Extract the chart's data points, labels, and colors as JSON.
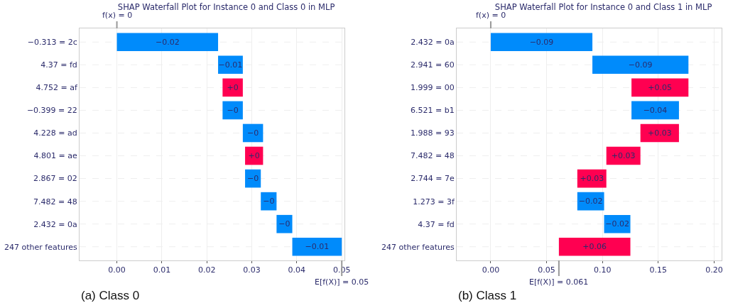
{
  "chart_data": [
    {
      "type": "bar",
      "orientation": "horizontal",
      "title": "SHAP Waterfall Plot for Instance 0 and Class 0 in MLP",
      "categories": [
        "−0.313 = 2c",
        "4.37 = fd",
        "4.752 = af",
        "−0.399 = 22",
        "4.228 = ad",
        "4.801 = ae",
        "2.867 = 02",
        "7.482 = 48",
        "2.432 = 0a",
        "247 other features"
      ],
      "base": [
        0.0225,
        0.028,
        0.0235,
        0.028,
        0.0325,
        0.0285,
        0.032,
        0.0355,
        0.039,
        0.05
      ],
      "values": [
        -0.0225,
        -0.0055,
        0.0045,
        -0.0045,
        -0.0045,
        0.004,
        -0.0035,
        -0.0035,
        -0.0035,
        -0.011
      ],
      "colors": [
        "#008bfb",
        "#008bfb",
        "#ff0051",
        "#008bfb",
        "#008bfb",
        "#ff0051",
        "#008bfb",
        "#008bfb",
        "#008bfb",
        "#008bfb"
      ],
      "value_labels": [
        "−0.02",
        "−0.01",
        "+0",
        "−0",
        "−0",
        "+0",
        "−0",
        "−0",
        "−0",
        "−0.01"
      ],
      "xlim": [
        -0.0083,
        0.0506
      ],
      "xticks": [
        {
          "value": 0,
          "label": "0.00"
        },
        0.01,
        0.02,
        0.03,
        0.04,
        0.05
      ],
      "grid": true,
      "annotations": [
        "f(x) = 0",
        "E[f(X)] = 0.05",
        "(a) Class 0"
      ]
    },
    {
      "type": "bar",
      "orientation": "horizontal",
      "title": "SHAP Waterfall Plot for Instance 0 and Class 1 in MLP",
      "categories": [
        "2.432 = 0a",
        "2.941 = 60",
        "1.999 = 00",
        "6.521 = b1",
        "1.988 = 93",
        "7.482 = 48",
        "2.744 = 7e",
        "1.273 = 3f",
        "4.37 = fd",
        "247 other features"
      ],
      "base": [
        0.091,
        0.177,
        0.126,
        0.1685,
        0.134,
        0.1035,
        0.0775,
        0.1015,
        0.125,
        0.061
      ],
      "values": [
        -0.091,
        -0.086,
        0.051,
        -0.0425,
        0.0345,
        0.0305,
        0.026,
        -0.024,
        -0.0235,
        0.064
      ],
      "colors": [
        "#008bfb",
        "#008bfb",
        "#ff0051",
        "#008bfb",
        "#ff0051",
        "#ff0051",
        "#ff0051",
        "#008bfb",
        "#008bfb",
        "#ff0051"
      ],
      "value_labels": [
        "−0.09",
        "−0.09",
        "+0.05",
        "−0.04",
        "+0.03",
        "+0.03",
        "+0.03",
        "−0.02",
        "−0.02",
        "+0.06"
      ],
      "xlim": [
        -0.0305,
        0.2067
      ],
      "xticks": [
        {
          "value": 0,
          "label": "0.00"
        },
        0.05,
        {
          "value": 0.1,
          "label": "0.10"
        },
        0.15,
        {
          "value": 0.2,
          "label": "0.20"
        }
      ],
      "grid": true,
      "annotations": [
        "f(x) = 0",
        "E[f(X)] = 0.061",
        "(b) Class 1"
      ]
    }
  ]
}
